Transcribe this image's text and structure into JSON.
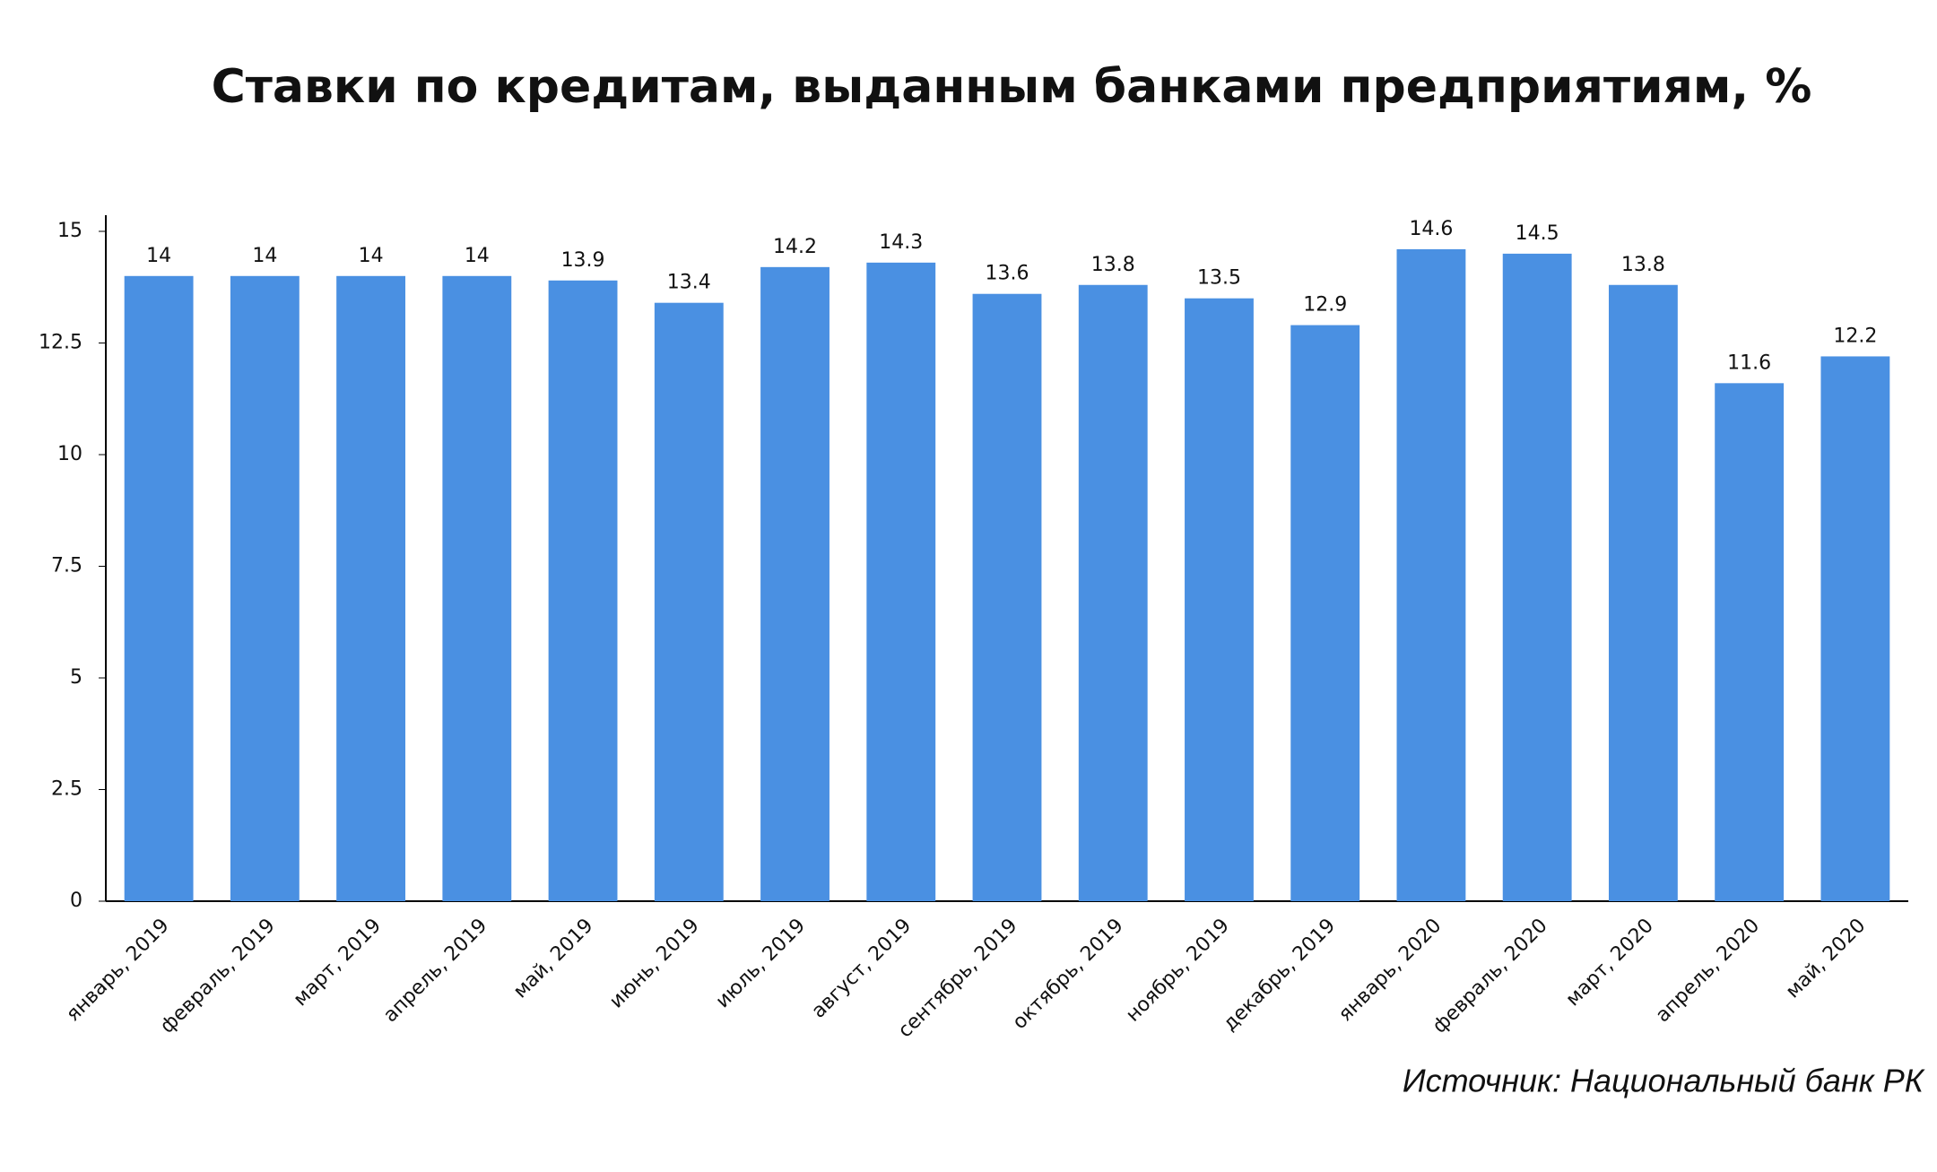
{
  "chart_data": {
    "type": "bar",
    "title": "Ставки по кредитам, выданным банками предприятиям, %",
    "categories": [
      "январь, 2019",
      "февраль, 2019",
      "март, 2019",
      "апрель, 2019",
      "май, 2019",
      "июнь, 2019",
      "июль, 2019",
      "август, 2019",
      "сентябрь, 2019",
      "октябрь, 2019",
      "ноябрь, 2019",
      "декабрь, 2019",
      "январь, 2020",
      "февраль, 2020",
      "март, 2020",
      "апрель, 2020",
      "май, 2020"
    ],
    "values": [
      14,
      14,
      14,
      14,
      13.9,
      13.4,
      14.2,
      14.3,
      13.6,
      13.8,
      13.5,
      12.9,
      14.6,
      14.5,
      13.8,
      11.6,
      12.2
    ],
    "color": "#4a90e2",
    "ylim": [
      0,
      15
    ],
    "yticks": [
      0,
      2.5,
      5,
      7.5,
      10,
      12.5,
      15
    ],
    "grid": false,
    "source": "Источник: Национальный банк РК"
  }
}
